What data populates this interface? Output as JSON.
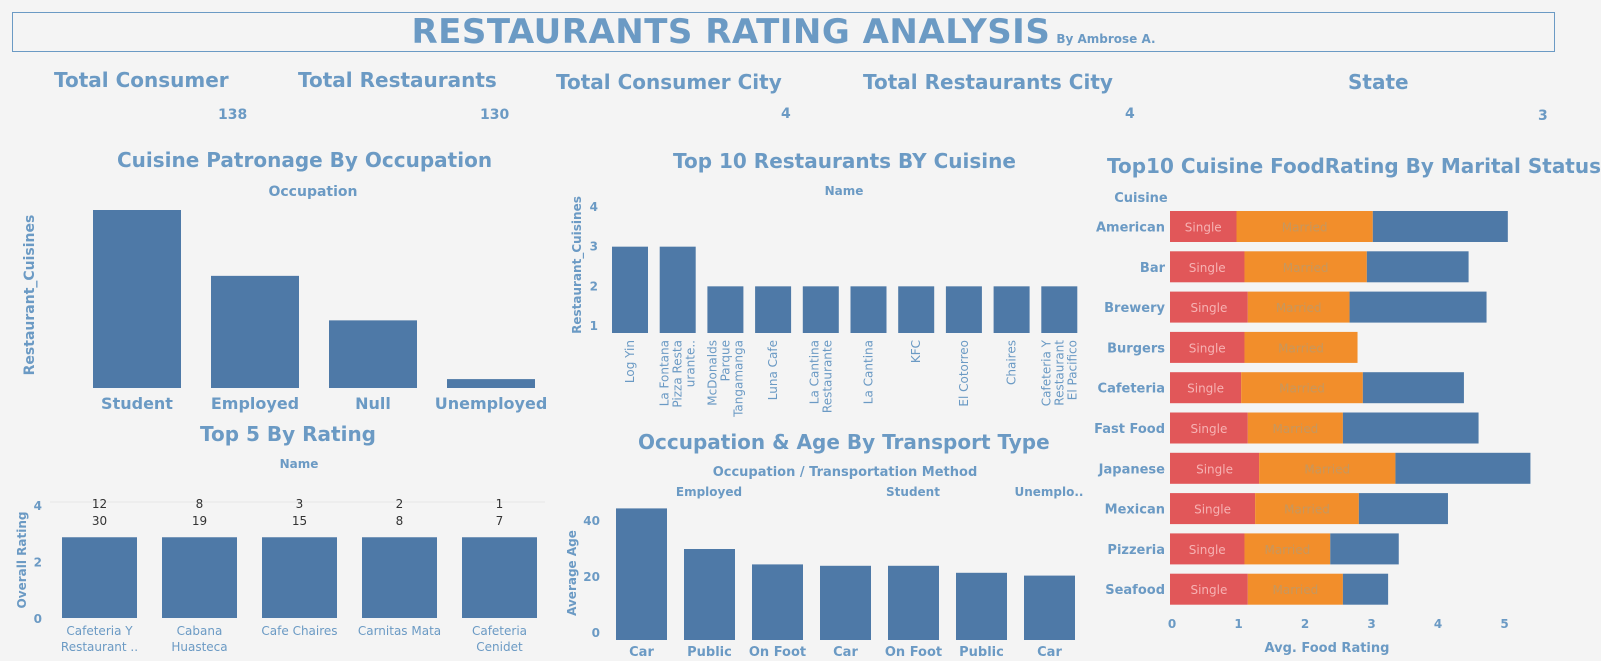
{
  "header": {
    "title": "RESTAURANTS RATING ANALYSIS",
    "byline": "By Ambrose A."
  },
  "kpis": [
    {
      "label": "Total Consumer",
      "value": "138"
    },
    {
      "label": "Total Restaurants",
      "value": "130"
    },
    {
      "label": "Total Consumer City",
      "value": "4"
    },
    {
      "label": "Total Restaurants City",
      "value": "4"
    },
    {
      "label": "State",
      "value": "3"
    }
  ],
  "colors": {
    "bar": "#4e79a7",
    "text": "#6b9ac4",
    "single": "#e15759",
    "married": "#f28e2b",
    "other": "#4e79a7"
  },
  "chart_data": [
    {
      "id": "patronage",
      "type": "bar",
      "title": "Cuisine Patronage By Occupation",
      "header": "Occupation",
      "ylabel": "Restaurant_Cuisines",
      "categories": [
        "Student",
        "Employed",
        "Null",
        "Unemployed"
      ],
      "values": [
        100,
        63,
        38,
        5
      ]
    },
    {
      "id": "top10",
      "type": "bar",
      "title": "Top 10 Restaurants BY Cuisine",
      "header": "Name",
      "ylabel": "Restaurant_Cuisines",
      "yticks": [
        "1",
        "2",
        "3",
        "4"
      ],
      "ylim": [
        1,
        4
      ],
      "categories": [
        [
          "Log Yin"
        ],
        [
          "La Fontana",
          "Pizza Resta",
          "urante.."
        ],
        [
          "McDonalds",
          "Parque",
          "Tangamanga"
        ],
        [
          "Luna Cafe"
        ],
        [
          "La Cantina",
          "Restaurante"
        ],
        [
          "La Cantina"
        ],
        [
          "KFC"
        ],
        [
          "El Cotorreo"
        ],
        [
          "Chaires"
        ],
        [
          "Cafeteria Y",
          "Restaurant",
          "El Pacifico"
        ]
      ],
      "values": [
        3,
        3,
        2,
        2,
        2,
        2,
        2,
        2,
        2,
        2
      ]
    },
    {
      "id": "top5",
      "type": "bar",
      "title": "Top 5 By Rating",
      "header": "Name",
      "ylabel": "Overall Rating",
      "yticks": [
        "0",
        "2",
        "4"
      ],
      "ylim": [
        0,
        4
      ],
      "categories": [
        [
          "Cafeteria Y",
          "Restaurant .."
        ],
        [
          "Cabana",
          "Huasteca"
        ],
        [
          "Cafe Chaires"
        ],
        [
          "Carnitas Mata"
        ],
        [
          "Cafeteria",
          "Cenidet"
        ]
      ],
      "values": [
        3,
        3,
        3,
        3,
        3
      ],
      "labels_top": [
        "12",
        "8",
        "3",
        "2",
        "1"
      ],
      "labels_bottom": [
        "30",
        "19",
        "15",
        "8",
        "7"
      ]
    },
    {
      "id": "transport",
      "type": "bar",
      "title": "Occupation & Age By Transport Type",
      "header": "Occupation  /  Transportation Method",
      "ylabel": "Average Age",
      "yticks": [
        "0",
        "20",
        "40"
      ],
      "ylim": [
        0,
        50
      ],
      "groups": [
        "Employed",
        "Student",
        "Unemplo.."
      ],
      "categories": [
        "Car",
        "Public",
        "On Foot",
        "Car",
        "On Foot",
        "Public",
        "Car"
      ],
      "values": [
        47,
        32.5,
        27,
        26.5,
        26.5,
        24,
        23
      ]
    },
    {
      "id": "marital",
      "type": "bar",
      "orientation": "horizontal",
      "stacked": true,
      "title": "Top10 Cuisine FoodRating By Marital Status",
      "header": "Cuisine",
      "xlabel": "Avg. Food Rating",
      "xticks": [
        "0",
        "1",
        "2",
        "3",
        "4",
        "5"
      ],
      "xlim": [
        0,
        5.4
      ],
      "categories": [
        "American",
        "Bar",
        "Brewery",
        "Burgers",
        "Cafeteria",
        "Fast Food",
        "Japanese",
        "Mexican",
        "Pizzeria",
        "Seafood"
      ],
      "series": [
        {
          "name": "Single",
          "values": [
            1.0,
            1.12,
            1.17,
            1.12,
            1.07,
            1.17,
            1.34,
            1.28,
            1.12,
            1.17
          ]
        },
        {
          "name": "Married",
          "values": [
            2.05,
            1.84,
            1.53,
            1.7,
            1.83,
            1.43,
            2.05,
            1.56,
            1.29,
            1.43
          ]
        },
        {
          "values": [
            2.03,
            1.53,
            2.06,
            0,
            1.52,
            2.04,
            2.03,
            1.34,
            1.03,
            0.68
          ]
        }
      ]
    }
  ]
}
